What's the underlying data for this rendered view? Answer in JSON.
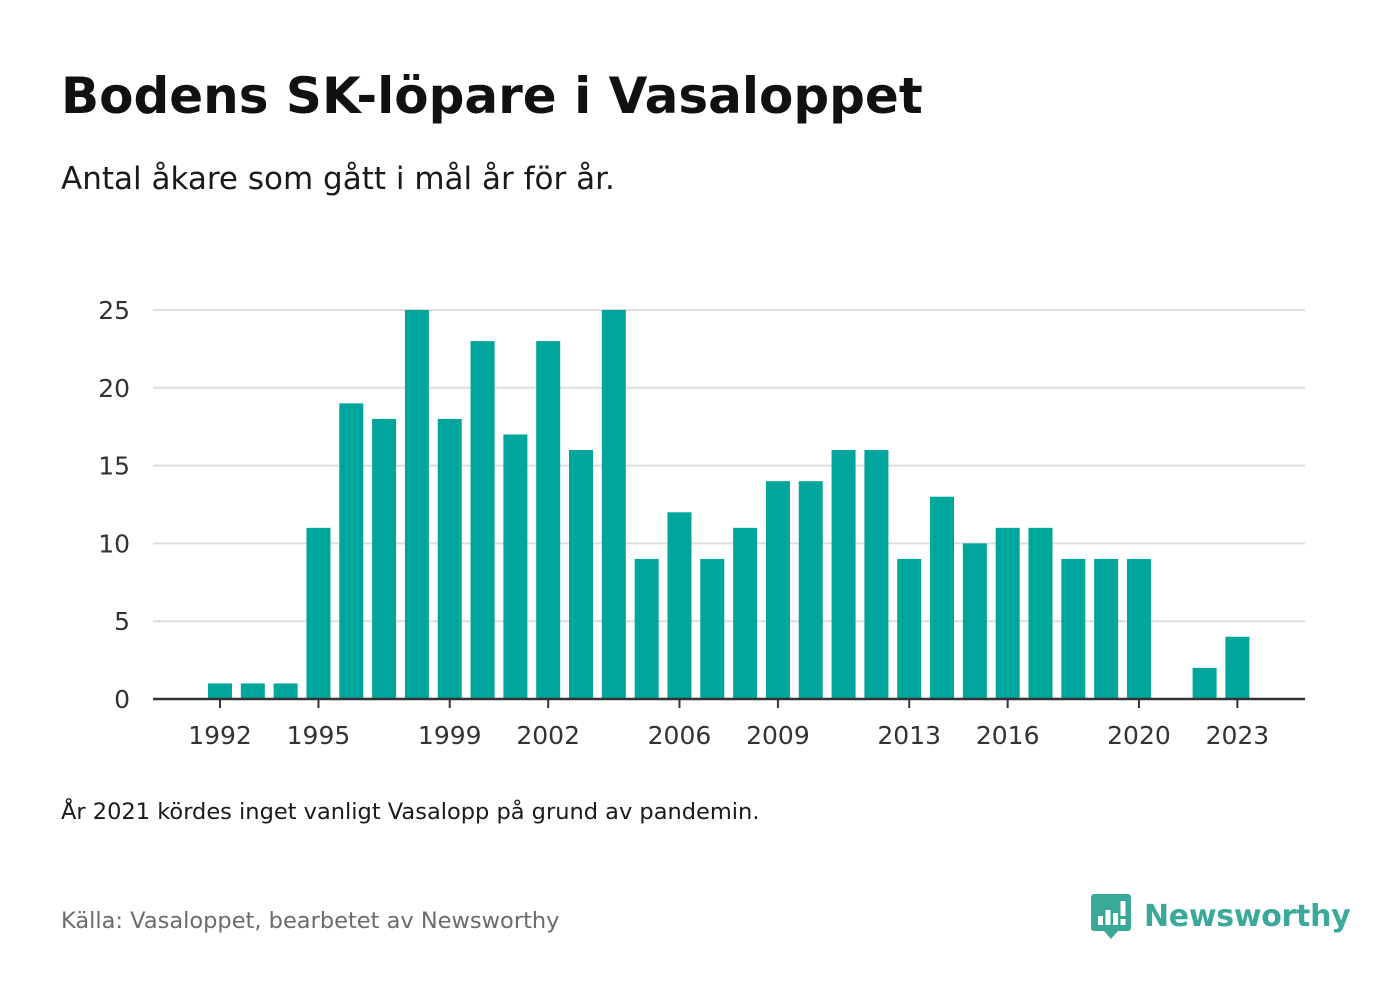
{
  "header": {
    "title": "Bodens SK-löpare i Vasaloppet",
    "subtitle": "Antal åkare som gått i mål år för år."
  },
  "footer": {
    "note": "År 2021 kördes inget vanligt Vasalopp på grund av pandemin.",
    "source": "Källa: Vasaloppet, bearbetet av Newsworthy",
    "brand": "Newsworthy",
    "brand_icon": "newsworthy-logo-icon"
  },
  "colors": {
    "bar": "#00a59b",
    "grid": "#dedede",
    "axis": "#333333",
    "brand": "#3aa99a"
  },
  "chart_data": {
    "type": "bar",
    "title": "Bodens SK-löpare i Vasaloppet",
    "subtitle": "Antal åkare som gått i mål år för år.",
    "xlabel": "",
    "ylabel": "",
    "categories": [
      1992,
      1993,
      1994,
      1995,
      1996,
      1997,
      1998,
      1999,
      2000,
      2001,
      2002,
      2003,
      2004,
      2005,
      2006,
      2007,
      2008,
      2009,
      2010,
      2011,
      2012,
      2013,
      2014,
      2015,
      2016,
      2017,
      2018,
      2019,
      2020,
      2021,
      2022,
      2023
    ],
    "values": [
      1,
      1,
      1,
      11,
      19,
      18,
      25,
      18,
      23,
      17,
      23,
      16,
      25,
      9,
      12,
      9,
      11,
      14,
      14,
      16,
      16,
      9,
      13,
      10,
      11,
      11,
      9,
      9,
      9,
      0,
      2,
      4
    ],
    "x_tick_labels": [
      "1992",
      "1995",
      "1999",
      "2002",
      "2006",
      "2009",
      "2013",
      "2016",
      "2020",
      "2023"
    ],
    "y_ticks": [
      0,
      5,
      10,
      15,
      20,
      25
    ],
    "ylim": [
      0,
      25
    ],
    "grid": true,
    "legend": "none"
  }
}
